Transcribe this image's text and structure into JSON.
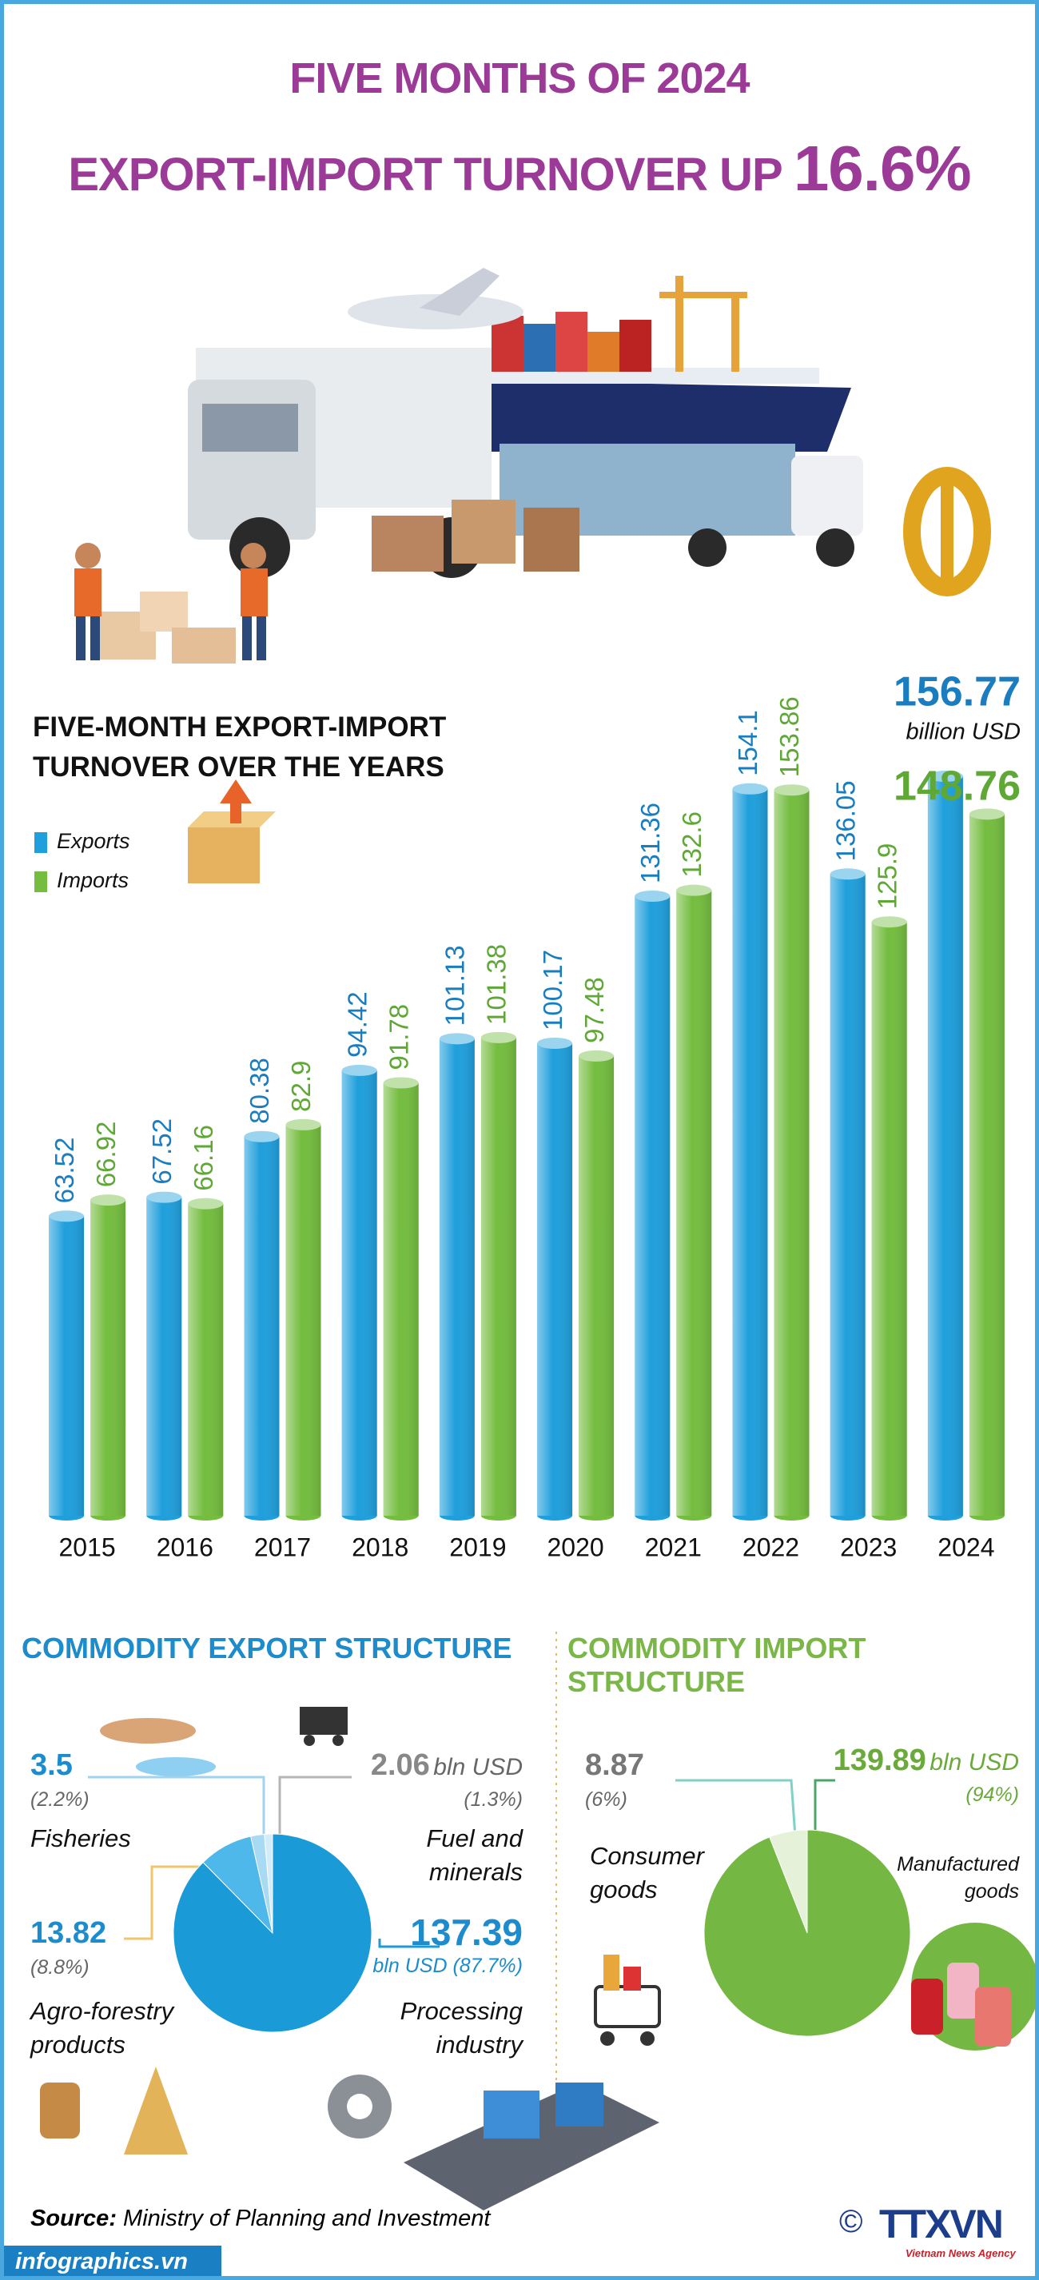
{
  "header": {
    "line1": "FIVE MONTHS OF 2024",
    "line2": "EXPORT-IMPORT TURNOVER UP",
    "highlight": "16.6%"
  },
  "chart_data": [
    {
      "type": "bar",
      "title": "FIVE-MONTH EXPORT-IMPORT TURNOVER OVER THE YEARS",
      "categories": [
        "2015",
        "2016",
        "2017",
        "2018",
        "2019",
        "2020",
        "2021",
        "2022",
        "2023",
        "2024"
      ],
      "series": [
        {
          "name": "Exports",
          "color": "#1f9fdc",
          "values": [
            63.52,
            67.52,
            80.38,
            94.42,
            101.13,
            100.17,
            131.36,
            154.1,
            136.05,
            156.77
          ]
        },
        {
          "name": "Imports",
          "color": "#74bd3f",
          "values": [
            66.92,
            66.16,
            82.9,
            91.78,
            101.38,
            97.48,
            132.6,
            153.86,
            125.9,
            148.76
          ]
        }
      ],
      "ylim": [
        0,
        160
      ],
      "annotation": "billion USD"
    },
    {
      "type": "pie",
      "title": "COMMODITY EXPORT STRUCTURE",
      "categories": [
        "Fuel and minerals",
        "Fisheries",
        "Agro-forestry products",
        "Processing industry"
      ],
      "values": [
        2.06,
        3.5,
        13.82,
        137.39
      ],
      "colors": [
        "#d3ecf9",
        "#a9daf4",
        "#4fb8ea",
        "#1b9ad8"
      ],
      "unit": "bln USD",
      "share_labels": [
        "(1.3%)",
        "(2.2%)",
        "(8.8%)",
        "(87.7%)"
      ]
    },
    {
      "type": "pie",
      "title": "COMMODITY IMPORT STRUCTURE",
      "categories": [
        "Consumer goods",
        "Manufactured goods"
      ],
      "values": [
        8.87,
        139.89
      ],
      "colors": [
        "#e6f1da",
        "#74b843"
      ],
      "unit": "bln USD",
      "share_labels": [
        "(6%)",
        "(94%)"
      ]
    }
  ],
  "source": {
    "label": "Source:",
    "text": "Ministry of Planning and Investment"
  },
  "footer": {
    "site": "infographics.vn",
    "copyright": "©",
    "logo": "TTXVN",
    "agency": "Vietnam News Agency"
  }
}
